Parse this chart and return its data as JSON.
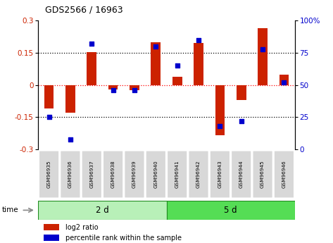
{
  "title": "GDS2566 / 16963",
  "samples": [
    "GSM96935",
    "GSM96936",
    "GSM96937",
    "GSM96938",
    "GSM96939",
    "GSM96940",
    "GSM96941",
    "GSM96942",
    "GSM96943",
    "GSM96944",
    "GSM96945",
    "GSM96946"
  ],
  "log2_ratio": [
    -0.11,
    -0.13,
    0.155,
    -0.02,
    -0.025,
    0.2,
    0.04,
    0.195,
    -0.235,
    -0.07,
    0.265,
    0.05
  ],
  "percentile_rank": [
    25,
    8,
    82,
    46,
    46,
    80,
    65,
    85,
    18,
    22,
    78,
    52
  ],
  "groups": [
    {
      "label": "2 d",
      "start": 0,
      "end": 6
    },
    {
      "label": "5 d",
      "start": 6,
      "end": 12
    }
  ],
  "group_colors": [
    "#B8F0B8",
    "#55DD55"
  ],
  "bar_color": "#CC2200",
  "dot_color": "#0000CC",
  "ylim": [
    -0.3,
    0.3
  ],
  "yticks": [
    -0.3,
    -0.15,
    0.0,
    0.15,
    0.3
  ],
  "ytick_labels_left": [
    "-0.3",
    "-0.15",
    "0",
    "0.15",
    "0.3"
  ],
  "ytick_labels_right": [
    "0",
    "25",
    "50",
    "75",
    "100%"
  ],
  "hlines": [
    -0.15,
    0.0,
    0.15
  ],
  "hline_colors": [
    "black",
    "red",
    "black"
  ],
  "legend_items": [
    {
      "label": "log2 ratio",
      "color": "#CC2200"
    },
    {
      "label": "percentile rank within the sample",
      "color": "#0000CC"
    }
  ]
}
